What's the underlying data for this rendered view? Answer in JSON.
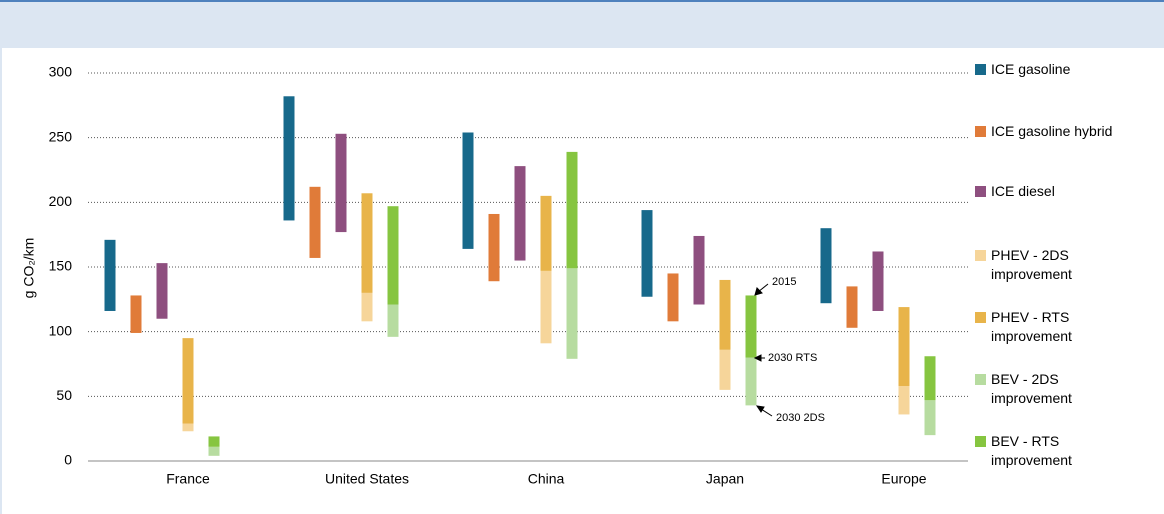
{
  "chart_data": {
    "type": "range-bar",
    "y_label": "g CO₂/km",
    "categories": [
      "France",
      "United States",
      "China",
      "Japan",
      "Europe"
    ],
    "ylim": [
      0,
      300
    ],
    "yticks": [
      0,
      50,
      100,
      150,
      200,
      250,
      300
    ],
    "grid": true,
    "annotations": [
      "2015",
      "2030 RTS",
      "2030 2DS"
    ],
    "series": [
      {
        "name": "ICE gasoline",
        "color": "#17698b",
        "low": [
          116,
          186,
          164,
          127,
          122
        ],
        "high": [
          171,
          282,
          254,
          194,
          180
        ]
      },
      {
        "name": "ICE gasoline hybrid",
        "color": "#e07b39",
        "low": [
          99,
          157,
          139,
          108,
          103
        ],
        "high": [
          128,
          212,
          191,
          145,
          135
        ]
      },
      {
        "name": "ICE diesel",
        "color": "#8e4f7f",
        "low": [
          110,
          177,
          155,
          121,
          116
        ],
        "high": [
          153,
          253,
          228,
          174,
          162
        ]
      },
      {
        "name": "PHEV - 2DS improvement",
        "color": "#f6d59a",
        "low": [
          23,
          108,
          91,
          55,
          36
        ],
        "high": [
          29,
          130,
          147,
          86,
          58
        ]
      },
      {
        "name": "PHEV - RTS improvement",
        "color": "#e8b44a",
        "low": [
          29,
          130,
          147,
          86,
          58
        ],
        "high": [
          95,
          207,
          205,
          140,
          119
        ]
      },
      {
        "name": "BEV - 2DS improvement",
        "color": "#b7dca0",
        "low": [
          4,
          96,
          79,
          43,
          20
        ],
        "high": [
          11,
          121,
          149,
          80,
          47
        ]
      },
      {
        "name": "BEV - RTS improvement",
        "color": "#86c540",
        "low": [
          11,
          121,
          149,
          80,
          47
        ],
        "high": [
          19,
          197,
          239,
          128,
          81
        ]
      }
    ]
  }
}
